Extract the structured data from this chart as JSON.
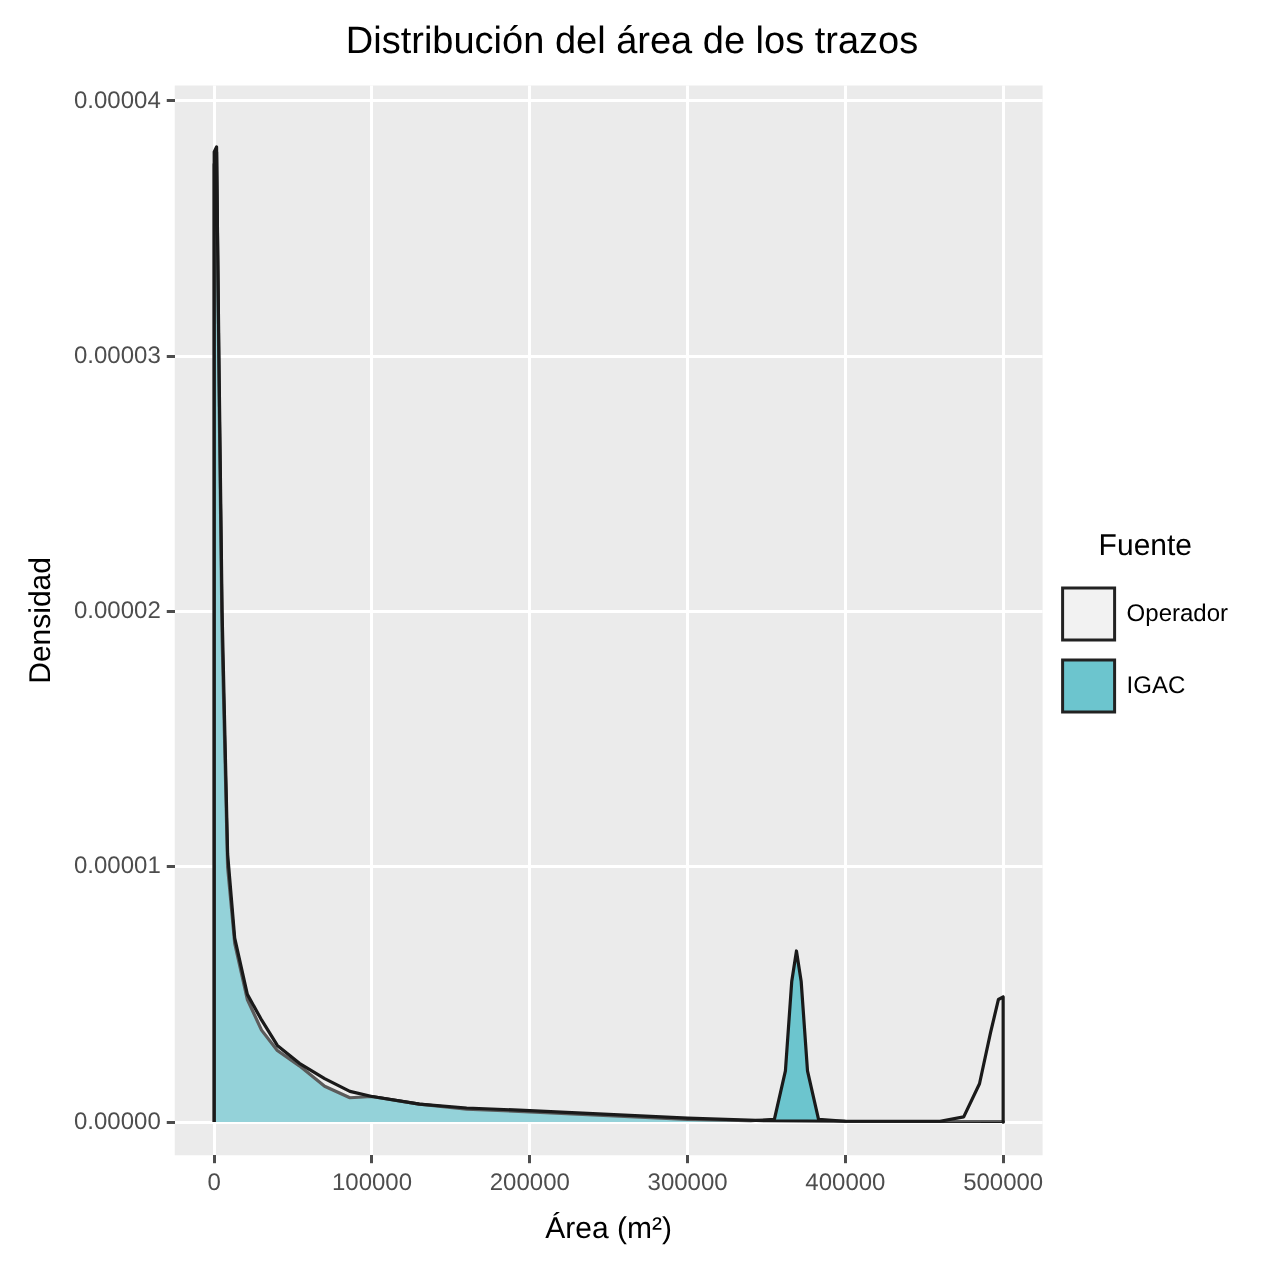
{
  "chart_data": {
    "type": "area",
    "title": "Distribución del área de los trazos",
    "xlabel": "Área (m²)",
    "ylabel": "Densidad",
    "legend_title": "Fuente",
    "xlim": [
      -25000,
      525000
    ],
    "xticks": [
      0,
      100000,
      200000,
      300000,
      400000,
      500000
    ],
    "ylim": [
      -1.3e-06,
      4.06e-05
    ],
    "yticks": [
      {
        "value": 0,
        "label": "0.00000"
      },
      {
        "value": 1e-05,
        "label": "0.00001"
      },
      {
        "value": 2e-05,
        "label": "0.00002"
      },
      {
        "value": 3e-05,
        "label": "0.00003"
      },
      {
        "value": 4e-05,
        "label": "0.00004"
      }
    ],
    "grid": true,
    "legend": "right",
    "series": [
      {
        "name": "Operador",
        "color": "#f2f2f2",
        "x": [
          0,
          0,
          1500,
          3000,
          5000,
          8500,
          13000,
          21000,
          30000,
          40000,
          54000,
          70000,
          86000,
          100000,
          130000,
          160000,
          200000,
          250000,
          300000,
          350000,
          400000,
          460000,
          475000,
          485000,
          492000,
          497000,
          500000,
          500000
        ],
        "values": [
          0,
          3.75e-05,
          3.8e-05,
          3e-05,
          2e-05,
          1.05e-05,
          7.2e-06,
          5e-06,
          4e-06,
          3e-06,
          2.3e-06,
          1.7e-06,
          1.2e-06,
          1e-06,
          7e-07,
          5.5e-07,
          4.5e-07,
          3e-07,
          1.5e-07,
          5e-08,
          3e-08,
          3e-08,
          2e-07,
          1.5e-06,
          3.5e-06,
          4.8e-06,
          4.9e-06,
          0
        ]
      },
      {
        "name": "IGAC",
        "color": "#6cc5ce",
        "x": [
          0,
          0,
          1500,
          3000,
          5000,
          8500,
          13000,
          21000,
          30000,
          40000,
          54000,
          70000,
          86000,
          100000,
          130000,
          160000,
          200000,
          250000,
          300000,
          340000,
          355000,
          362000,
          366000,
          369000,
          372000,
          376000,
          383000,
          400000,
          500000,
          500000
        ],
        "values": [
          0,
          3.8e-05,
          3.82e-05,
          2.9e-05,
          1.9e-05,
          1e-05,
          7e-06,
          4.8e-06,
          3.6e-06,
          2.8e-06,
          2.2e-06,
          1.4e-06,
          9.5e-07,
          1e-06,
          7e-07,
          5e-07,
          4e-07,
          2.5e-07,
          1e-07,
          5e-08,
          1e-07,
          2e-06,
          5.5e-06,
          6.7e-06,
          5.5e-06,
          2e-06,
          1e-07,
          3e-08,
          2e-08,
          0
        ]
      }
    ]
  }
}
